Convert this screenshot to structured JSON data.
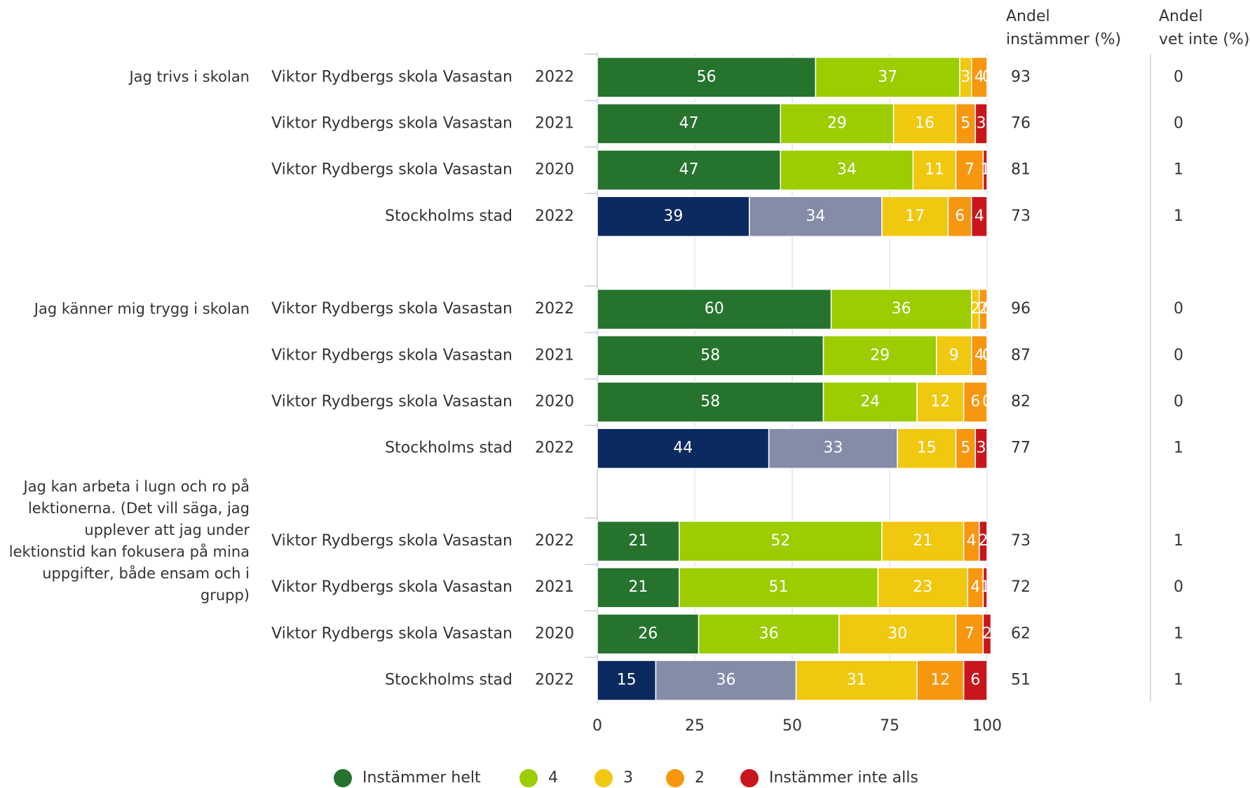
{
  "chart_data": {
    "type": "bar",
    "orientation": "horizontal",
    "stacked": true,
    "question_labels": [
      "Jag trivs i skolan",
      null,
      null,
      null,
      "Jag känner mig trygg i skolan",
      null,
      null,
      null,
      "Jag kan arbeta i lugn och ro på lektionerna. (Det vill säga, jag upplever att jag under lektionstid kan fokusera på mina uppgifter, både ensam och i grupp)",
      null,
      null,
      null
    ],
    "categories": [
      "Viktor Rydbergs skola Vasastan",
      "Viktor Rydbergs skola Vasastan",
      "Viktor Rydbergs skola Vasastan",
      "Stockholms stad",
      "Viktor Rydbergs skola Vasastan",
      "Viktor Rydbergs skola Vasastan",
      "Viktor Rydbergs skola Vasastan",
      "Stockholms stad",
      "Viktor Rydbergs skola Vasastan",
      "Viktor Rydbergs skola Vasastan",
      "Viktor Rydbergs skola Vasastan",
      "Stockholms stad"
    ],
    "years": [
      "2022",
      "2021",
      "2020",
      "2022",
      "2022",
      "2021",
      "2020",
      "2022",
      "2022",
      "2021",
      "2020",
      "2022"
    ],
    "series": [
      {
        "name": "Instämmer helt",
        "color": "#26732e",
        "colors": [
          "#26732e",
          "#26732e",
          "#26732e",
          "#0b2a5f",
          "#26732e",
          "#26732e",
          "#26732e",
          "#0b2a5f",
          "#26732e",
          "#26732e",
          "#26732e",
          "#0b2a5f"
        ],
        "values": [
          56,
          47,
          47,
          39,
          60,
          58,
          58,
          44,
          21,
          21,
          26,
          15
        ]
      },
      {
        "name": "4",
        "color": "#9bcd00",
        "colors": [
          "#9bcd00",
          "#9bcd00",
          "#9bcd00",
          "#848ca8",
          "#9bcd00",
          "#9bcd00",
          "#9bcd00",
          "#848ca8",
          "#9bcd00",
          "#9bcd00",
          "#9bcd00",
          "#848ca8"
        ],
        "values": [
          37,
          29,
          34,
          34,
          36,
          29,
          24,
          33,
          52,
          51,
          36,
          36
        ]
      },
      {
        "name": "3",
        "color": "#f0c80f",
        "colors": [
          "#f0c80f",
          "#f0c80f",
          "#f0c80f",
          "#f0c80f",
          "#f0c80f",
          "#f0c80f",
          "#f0c80f",
          "#f0c80f",
          "#f0c80f",
          "#f0c80f",
          "#f0c80f",
          "#f0c80f"
        ],
        "values": [
          3,
          16,
          11,
          17,
          2,
          9,
          12,
          15,
          21,
          23,
          30,
          31
        ]
      },
      {
        "name": "2",
        "color": "#f7960f",
        "colors": [
          "#f7960f",
          "#f7960f",
          "#f7960f",
          "#f7960f",
          "#f7960f",
          "#f7960f",
          "#f7960f",
          "#f7960f",
          "#f7960f",
          "#f7960f",
          "#f7960f",
          "#f7960f"
        ],
        "values": [
          4,
          5,
          7,
          6,
          2,
          4,
          6,
          5,
          4,
          4,
          7,
          12
        ]
      },
      {
        "name": "Instämmer inte alls",
        "color": "#c8161c",
        "colors": [
          "#c8161c",
          "#c8161c",
          "#c8161c",
          "#c8161c",
          "#c8161c",
          "#c8161c",
          "#c8161c",
          "#c8161c",
          "#c8161c",
          "#c8161c",
          "#c8161c",
          "#c8161c"
        ],
        "values": [
          0,
          3,
          1,
          4,
          0,
          0,
          0,
          3,
          2,
          1,
          2,
          6
        ]
      }
    ],
    "agree_header": [
      "Andel",
      "instämmer (%)"
    ],
    "agree_values": [
      93,
      76,
      81,
      73,
      96,
      87,
      82,
      77,
      73,
      72,
      62,
      51
    ],
    "dont_know_header": [
      "Andel",
      "vet inte (%)"
    ],
    "dont_know_values": [
      0,
      0,
      1,
      1,
      0,
      0,
      0,
      1,
      1,
      0,
      1,
      1
    ],
    "xlim": [
      0,
      100
    ],
    "xticks": [
      0,
      25,
      50,
      75,
      100
    ],
    "grid": true,
    "legend": "bottom"
  }
}
